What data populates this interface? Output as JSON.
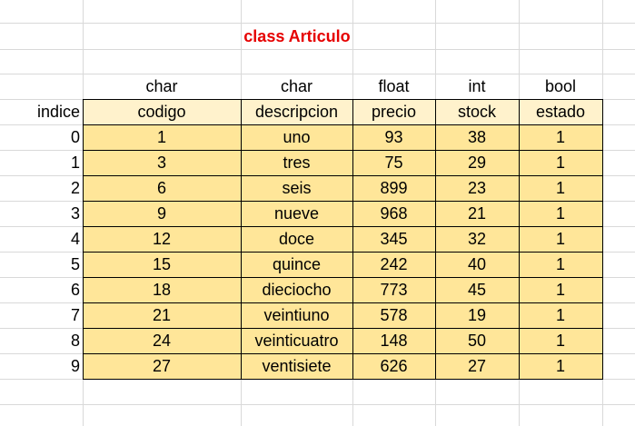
{
  "sheet": {
    "title": "class Articulo",
    "index_header": "indice",
    "type_row": [
      "char",
      "char",
      "float",
      "int",
      "bool"
    ],
    "column_headers": [
      "codigo",
      "descripcion",
      "precio",
      "stock",
      "estado"
    ],
    "indices": [
      "0",
      "1",
      "2",
      "3",
      "4",
      "5",
      "6",
      "7",
      "8",
      "9"
    ],
    "rows": [
      [
        "1",
        "uno",
        "93",
        "38",
        "1"
      ],
      [
        "3",
        "tres",
        "75",
        "29",
        "1"
      ],
      [
        "6",
        "seis",
        "899",
        "23",
        "1"
      ],
      [
        "9",
        "nueve",
        "968",
        "21",
        "1"
      ],
      [
        "12",
        "doce",
        "345",
        "32",
        "1"
      ],
      [
        "15",
        "quince",
        "242",
        "40",
        "1"
      ],
      [
        "18",
        "dieciocho",
        "773",
        "45",
        "1"
      ],
      [
        "21",
        "veintiuno",
        "578",
        "19",
        "1"
      ],
      [
        "24",
        "veinticuatro",
        "148",
        "50",
        "1"
      ],
      [
        "27",
        "ventisiete",
        "626",
        "27",
        "1"
      ]
    ]
  },
  "colors": {
    "title_color": "#e60000",
    "header_fill": "#fff2cc",
    "data_fill": "#ffe699",
    "gridline": "#d9d9d9"
  }
}
